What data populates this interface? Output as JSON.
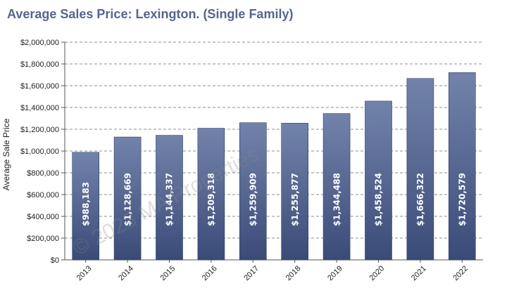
{
  "chart_data": {
    "type": "bar",
    "title": "Average Sales Price: Lexington. (Single Family)",
    "ylabel": "Average Sale Price",
    "xlabel": "",
    "categories": [
      "2013",
      "2014",
      "2015",
      "2016",
      "2017",
      "2018",
      "2019",
      "2020",
      "2021",
      "2022"
    ],
    "values": [
      988183,
      1128669,
      1144337,
      1209318,
      1259909,
      1255877,
      1344488,
      1458524,
      1666322,
      1720579
    ],
    "value_labels": [
      "$988,183",
      "$1,128,669",
      "$1,144,337",
      "$1,209,318",
      "$1,259,909",
      "$1,255,877",
      "$1,344,488",
      "$1,458,524",
      "$1,666,322",
      "$1,720,579"
    ],
    "ylim": [
      0,
      2000000
    ],
    "yticks": [
      0,
      200000,
      400000,
      600000,
      800000,
      1000000,
      1200000,
      1400000,
      1600000,
      1800000,
      2000000
    ],
    "ytick_labels": [
      "$0",
      "$200,000",
      "$400,000",
      "$600,000",
      "$800,000",
      "$1,000,000",
      "$1,200,000",
      "$1,400,000",
      "$1,600,000",
      "$1,800,000",
      "$2,000,000"
    ],
    "grid": true,
    "bar_color_top": "#7283ab",
    "bar_color_bottom": "#3b4b78",
    "watermark": "© 2023 MA Properties"
  }
}
